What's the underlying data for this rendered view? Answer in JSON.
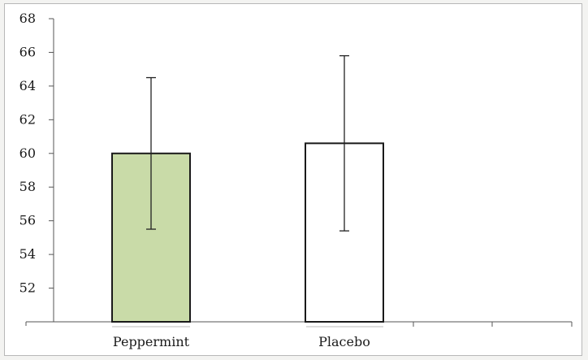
{
  "chart_data": {
    "type": "bar",
    "title": "",
    "xlabel": "",
    "ylabel": "",
    "categories": [
      "Peppermint",
      "Placebo"
    ],
    "values": [
      60.0,
      60.6
    ],
    "error_low": [
      55.5,
      55.4
    ],
    "error_high": [
      64.5,
      65.8
    ],
    "bar_colors": [
      "#c9dba8",
      "#ffffff"
    ],
    "bar_stroke": "#1a1a1a",
    "ylim": [
      50,
      68
    ],
    "yticks": [
      52,
      54,
      56,
      58,
      60,
      62,
      64,
      66,
      68
    ],
    "ytick_labels": [
      "52",
      "54",
      "56",
      "58",
      "60",
      "62",
      "64",
      "66",
      "68"
    ],
    "grid": false,
    "legend": "none"
  }
}
